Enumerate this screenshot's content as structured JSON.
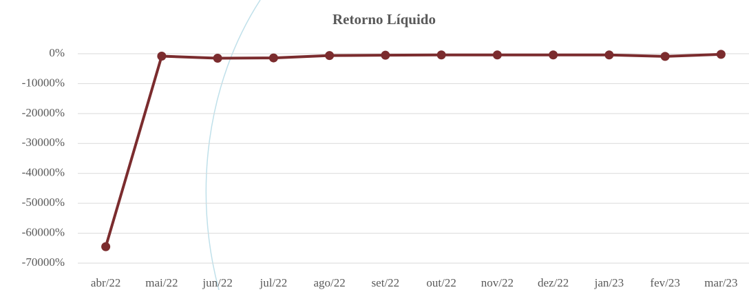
{
  "chart_data": {
    "type": "line",
    "title": "Retorno Líquido",
    "categories": [
      "abr/22",
      "mai/22",
      "jun/22",
      "jul/22",
      "ago/22",
      "set/22",
      "out/22",
      "nov/22",
      "dez/22",
      "jan/23",
      "fev/23",
      "mar/23"
    ],
    "series": [
      {
        "name": "Retorno Líquido",
        "color": "#7b2c2e",
        "values": [
          -64500,
          -800,
          -1500,
          -1400,
          -600,
          -500,
          -400,
          -400,
          -400,
          -400,
          -900,
          -200
        ]
      }
    ],
    "ylim": [
      -70000,
      0
    ],
    "yticks": [
      {
        "value": 0,
        "label": "0%"
      },
      {
        "value": -10000,
        "label": "-10000%"
      },
      {
        "value": -20000,
        "label": "-20000%"
      },
      {
        "value": -30000,
        "label": "-30000%"
      },
      {
        "value": -40000,
        "label": "-40000%"
      },
      {
        "value": -50000,
        "label": "-50000%"
      },
      {
        "value": -60000,
        "label": "-60000%"
      },
      {
        "value": -70000,
        "label": "-70000%"
      }
    ],
    "grid": true
  }
}
